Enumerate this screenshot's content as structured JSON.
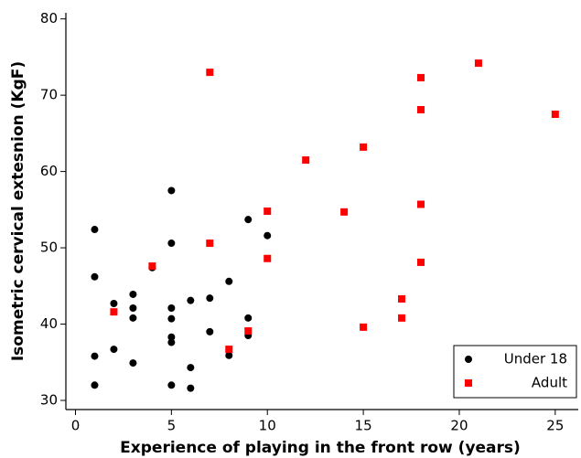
{
  "chart_data": {
    "type": "scatter",
    "xlabel": "Experience of playing in the front row (years)",
    "ylabel": "Isometric cervical extesnion (KgF)",
    "xlim": [
      -0.5,
      26.2
    ],
    "ylim": [
      28.8,
      80.8
    ],
    "xticks": [
      0,
      5,
      10,
      15,
      20,
      25
    ],
    "yticks": [
      30,
      40,
      50,
      60,
      70,
      80
    ],
    "legend": "lower right",
    "series": [
      {
        "name": "Under 18",
        "color": "#000000",
        "marker": "circle",
        "x": [
          1,
          1,
          1,
          1,
          2,
          2,
          3,
          3,
          3,
          3,
          4,
          5,
          5,
          5,
          5,
          5,
          5,
          5,
          6,
          6,
          6,
          7,
          7,
          8,
          8,
          9,
          9,
          9,
          10
        ],
        "values": [
          52.4,
          46.2,
          35.8,
          32.0,
          42.7,
          36.7,
          43.9,
          42.1,
          40.8,
          34.9,
          47.4,
          57.5,
          50.6,
          42.1,
          40.7,
          38.3,
          37.6,
          32.0,
          43.1,
          34.3,
          31.6,
          43.4,
          39.0,
          45.6,
          35.9,
          53.7,
          40.8,
          38.5,
          51.6
        ]
      },
      {
        "name": "Adult",
        "color": "#ff0000",
        "marker": "square",
        "x": [
          2,
          4,
          7,
          7,
          8,
          9,
          10,
          10,
          12,
          14,
          15,
          15,
          17,
          17,
          18,
          18,
          18,
          18,
          21,
          25
        ],
        "values": [
          41.6,
          47.6,
          73.0,
          50.6,
          36.7,
          39.1,
          54.8,
          48.6,
          61.5,
          54.7,
          63.2,
          39.6,
          43.3,
          40.8,
          72.3,
          68.1,
          55.7,
          48.1,
          74.2,
          67.5
        ]
      }
    ]
  }
}
